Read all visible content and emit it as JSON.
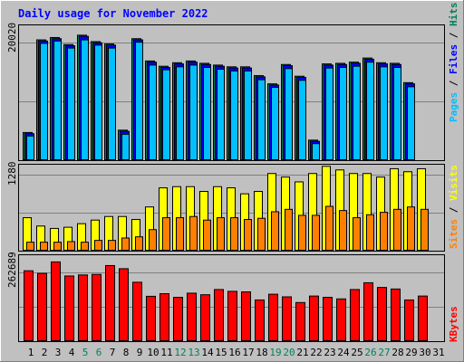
{
  "chart_data": [
    {
      "title": "Daily usage for November 2022",
      "type": "bar",
      "categories": [
        "1",
        "2",
        "3",
        "4",
        "5",
        "6",
        "7",
        "8",
        "9",
        "10",
        "11",
        "12",
        "13",
        "14",
        "15",
        "16",
        "17",
        "18",
        "19",
        "20",
        "21",
        "22",
        "23",
        "24",
        "25",
        "26",
        "27",
        "28",
        "29",
        "30",
        "31"
      ],
      "weekend_days": [
        "5",
        "6",
        "12",
        "13",
        "19",
        "20",
        "26",
        "27"
      ],
      "ylabel_parts": [
        "Pages",
        "Files",
        "Hits"
      ],
      "ytick": "20020",
      "ymax": 23000,
      "series": [
        {
          "name": "Hits",
          "color": "#00805c",
          "values": [
            4800,
            20600,
            21000,
            19800,
            21400,
            20300,
            19900,
            5200,
            20800,
            17000,
            16100,
            16700,
            17000,
            16600,
            16300,
            16000,
            16000,
            14500,
            13100,
            16400,
            14400,
            3500,
            16500,
            16600,
            16800,
            17500,
            16700,
            16600,
            13300,
            0,
            0
          ]
        },
        {
          "name": "Files",
          "color": "#0000ff",
          "values": [
            4600,
            20400,
            20800,
            19600,
            21200,
            20100,
            19700,
            5000,
            20600,
            16800,
            15900,
            16500,
            16800,
            16400,
            16100,
            15800,
            15800,
            14300,
            12900,
            16200,
            14200,
            3300,
            16300,
            16400,
            16600,
            17300,
            16500,
            16400,
            13100,
            0,
            0
          ]
        },
        {
          "name": "Pages",
          "color": "#00c0ff",
          "values": [
            4200,
            20000,
            20400,
            19200,
            20600,
            19700,
            19200,
            4500,
            20200,
            16300,
            15500,
            16000,
            16300,
            15900,
            15600,
            15300,
            15300,
            13800,
            12500,
            15700,
            13700,
            2900,
            15800,
            15900,
            16100,
            16800,
            16000,
            15900,
            12600,
            0,
            0
          ]
        }
      ]
    },
    {
      "type": "bar",
      "ylabel_parts": [
        "Sites",
        "Visits"
      ],
      "ytick": "1280",
      "ymax": 1440,
      "series": [
        {
          "name": "Visits",
          "color": "#ffff00",
          "values": [
            560,
            420,
            380,
            400,
            460,
            520,
            580,
            580,
            530,
            740,
            1060,
            1080,
            1080,
            1000,
            1080,
            1060,
            960,
            1000,
            1300,
            1240,
            1160,
            1300,
            1420,
            1360,
            1300,
            1300,
            1240,
            1380,
            1330,
            1380,
            0
          ]
        },
        {
          "name": "Sites",
          "color": "#ff8000",
          "values": [
            150,
            150,
            150,
            160,
            150,
            180,
            180,
            220,
            240,
            360,
            560,
            560,
            580,
            520,
            560,
            560,
            530,
            550,
            660,
            700,
            600,
            600,
            750,
            680,
            560,
            610,
            650,
            700,
            740,
            700,
            0
          ]
        }
      ]
    },
    {
      "type": "bar",
      "ylabel_parts": [
        "KBytes"
      ],
      "ytick": "262689",
      "ymax": 330000,
      "series": [
        {
          "name": "KBytes",
          "color": "#ff0000",
          "values": [
            272000,
            262000,
            306000,
            252000,
            256000,
            258000,
            292000,
            280000,
            228000,
            174000,
            184000,
            170000,
            186000,
            180000,
            200000,
            193000,
            191000,
            160000,
            182000,
            172000,
            150000,
            175000,
            170000,
            164000,
            200000,
            226000,
            208000,
            202000,
            160000,
            175000,
            0
          ]
        }
      ]
    }
  ]
}
